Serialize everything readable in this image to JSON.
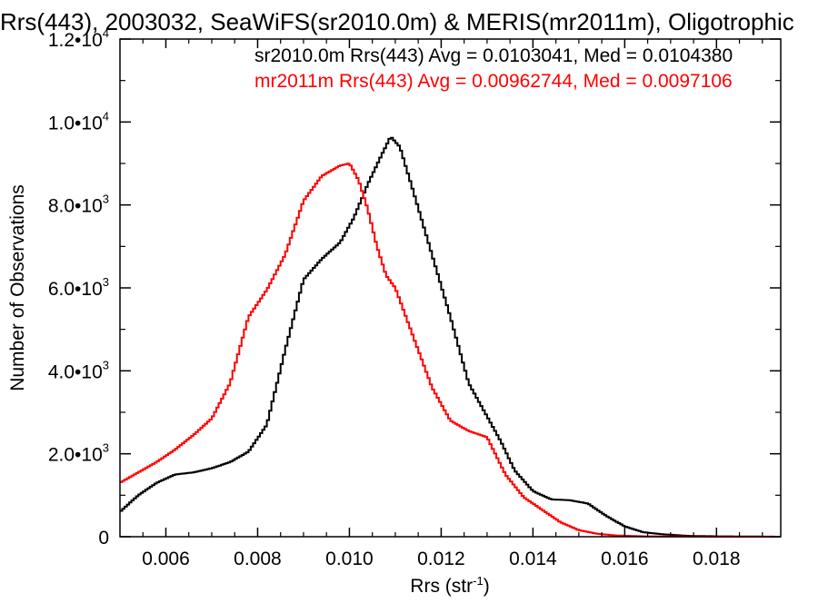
{
  "chart_data": {
    "type": "line",
    "title": "Rrs(443), 2003032, SeaWiFS(sr2010.0m) & MERIS(mr2011m), Oligotrophic",
    "xlabel": "Rrs (str",
    "xlabel_sup": "-1",
    "xlabel_close": ")",
    "ylabel": "Number of Observations",
    "xlim": [
      0.005,
      0.0194
    ],
    "ylim": [
      0,
      12000
    ],
    "x_ticks": [
      {
        "value": 0.006,
        "label": "0.006"
      },
      {
        "value": 0.008,
        "label": "0.008"
      },
      {
        "value": 0.01,
        "label": "0.010"
      },
      {
        "value": 0.012,
        "label": "0.012"
      },
      {
        "value": 0.014,
        "label": "0.014"
      },
      {
        "value": 0.016,
        "label": "0.016"
      },
      {
        "value": 0.018,
        "label": "0.018"
      }
    ],
    "y_ticks": [
      {
        "value": 0,
        "mant": "0",
        "exp": ""
      },
      {
        "value": 2000,
        "mant": "2.0•10",
        "exp": "3"
      },
      {
        "value": 4000,
        "mant": "4.0•10",
        "exp": "3"
      },
      {
        "value": 6000,
        "mant": "6.0•10",
        "exp": "3"
      },
      {
        "value": 8000,
        "mant": "8.0•10",
        "exp": "3"
      },
      {
        "value": 10000,
        "mant": "1.0•10",
        "exp": "4"
      },
      {
        "value": 12000,
        "mant": "1.2•10",
        "exp": "4"
      }
    ],
    "legend": [
      "sr2010.0m Rrs(443) Avg = 0.0103041, Med = 0.0104380",
      "mr2011m Rrs(443) Avg = 0.00962744, Med = 0.0097106"
    ],
    "series": [
      {
        "color": "#000000",
        "x": [
          0.005,
          0.0054,
          0.0058,
          0.0062,
          0.0066,
          0.007,
          0.0074,
          0.0078,
          0.0082,
          0.0086,
          0.009,
          0.0094,
          0.0098,
          0.0101,
          0.0104,
          0.0107,
          0.0109,
          0.0111,
          0.0114,
          0.0118,
          0.0122,
          0.0126,
          0.013,
          0.0133,
          0.0136,
          0.014,
          0.0144,
          0.0148,
          0.0152,
          0.0156,
          0.016,
          0.0164,
          0.0168,
          0.0174,
          0.018,
          0.0194
        ],
        "y": [
          600,
          1000,
          1300,
          1500,
          1550,
          1650,
          1800,
          2050,
          2700,
          4500,
          6200,
          6700,
          7100,
          7700,
          8500,
          9200,
          9650,
          9400,
          8300,
          6800,
          5300,
          3700,
          2900,
          2300,
          1600,
          1100,
          900,
          880,
          800,
          500,
          250,
          110,
          60,
          20,
          10,
          0
        ]
      },
      {
        "color": "#ff0000",
        "x": [
          0.005,
          0.0054,
          0.0058,
          0.0062,
          0.0066,
          0.007,
          0.0074,
          0.0078,
          0.0082,
          0.0086,
          0.009,
          0.0094,
          0.0098,
          0.01,
          0.0102,
          0.0104,
          0.0106,
          0.0108,
          0.011,
          0.0114,
          0.0118,
          0.0122,
          0.0126,
          0.013,
          0.0134,
          0.0138,
          0.0142,
          0.0146,
          0.015,
          0.0154,
          0.0158,
          0.0164,
          0.017,
          0.018,
          0.0194
        ],
        "y": [
          1300,
          1550,
          1800,
          2100,
          2450,
          2850,
          3700,
          5300,
          5950,
          6800,
          8100,
          8700,
          8950,
          9000,
          8600,
          7900,
          7000,
          6300,
          6000,
          4800,
          3600,
          2800,
          2550,
          2400,
          1500,
          950,
          650,
          350,
          160,
          70,
          30,
          10,
          5,
          0,
          0
        ]
      }
    ]
  }
}
